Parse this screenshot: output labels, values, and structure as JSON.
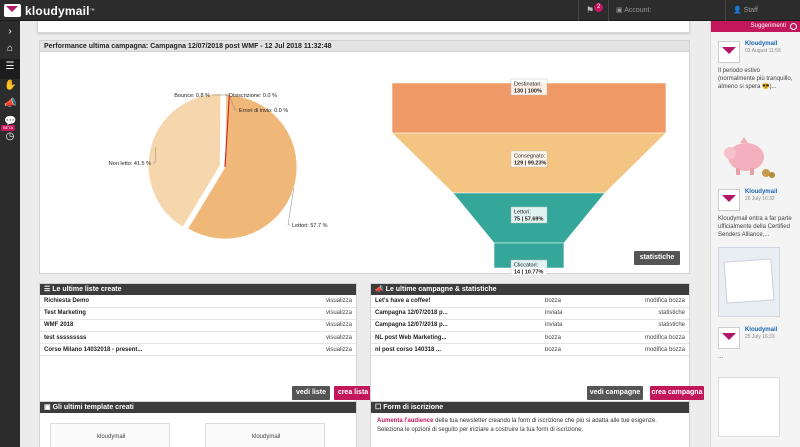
{
  "brand": {
    "name": "kloudymail",
    "tm": "™",
    "accent": "#c2185b"
  },
  "topbar": {
    "notif_count": "2",
    "account_label": "Account:",
    "user_label": "Staff"
  },
  "sidebar": {
    "icons": [
      "chevron-right-icon",
      "home-icon",
      "list-icon",
      "hand-icon",
      "megaphone-icon",
      "chat-icon",
      "clock-icon"
    ],
    "beta_label": "BETA"
  },
  "perf": {
    "title": "Performance ultima campagna: Campagna 12/07/2018 post WMF - 12 Jul 2018 11:32:48",
    "stats_button": "statistiche"
  },
  "chart_data": [
    {
      "type": "pie",
      "labels": [
        "Lettori",
        "Non letto",
        "Bounce",
        "Disiscrizione",
        "Errori di invio"
      ],
      "values": [
        57.7,
        41.5,
        0.8,
        0.0,
        0.0
      ],
      "display_labels": [
        "Lettori: 57.7 %",
        "Non letto: 41.5 %",
        "Bounce: 0.8 %",
        "Disiscrizione: 0.0 %",
        "Errori di invio: 0.0 %"
      ],
      "colors": [
        "#f0b878",
        "#f6d7ad",
        "#f3c88e",
        "#e8332c",
        "#cc2222"
      ]
    },
    {
      "type": "funnel",
      "stages": [
        {
          "name": "Destinatari:",
          "value": "130 | 100%",
          "count": 130,
          "percent": 100,
          "color": "#ef9a66"
        },
        {
          "name": "Consegnato:",
          "value": "129 | 99.23%",
          "count": 129,
          "percent": 99.23,
          "color": "#f4c482"
        },
        {
          "name": "Lettori:",
          "value": "75 | 57.69%",
          "count": 75,
          "percent": 57.69,
          "color": "#35a79a"
        },
        {
          "name": "Cliccatori:",
          "value": "14 | 10.77%",
          "count": 14,
          "percent": 10.77,
          "color": "#35a79a"
        }
      ]
    }
  ],
  "lists": {
    "title": "Le ultime liste create",
    "rows": [
      {
        "name": "Richiesta Demo",
        "action": "visualizza"
      },
      {
        "name": "Test Marketing",
        "action": "visualizza"
      },
      {
        "name": "WMF 2018",
        "action": "visualizza"
      },
      {
        "name": "test sssssssss",
        "action": "visualizza"
      },
      {
        "name": "Corso Milano 14032018 - present...",
        "action": "visualizza"
      }
    ],
    "btn_view": "vedi liste",
    "btn_create": "crea lista"
  },
  "camps": {
    "title": "Le ultime campagne & statistiche",
    "rows": [
      {
        "name": "Let's have a coffee!",
        "status": "bozza",
        "action": "modifica bozza"
      },
      {
        "name": "Campagna 12/07/2018 p...",
        "status": "inviata",
        "action": "statistiche"
      },
      {
        "name": "Campagna 12/07/2018 p...",
        "status": "inviata",
        "action": "statistiche"
      },
      {
        "name": "NL post Web Marketing...",
        "status": "bozza",
        "action": "modifica bozza"
      },
      {
        "name": "nl post corso 140318 ...",
        "status": "bozza",
        "action": "modifica bozza"
      }
    ],
    "btn_view": "vedi campagne",
    "btn_create": "crea campagna"
  },
  "templates": {
    "title": "Gli ultimi template creati",
    "thumb_logo": "kloudymail"
  },
  "forms": {
    "title": "Form di iscrizione",
    "highlight": "Aumenta l'audience",
    "text1": " della tua newsletter creando la form di iscrizione che più si adatta alle tue esigenze.",
    "text2": "Seleziona le opzioni di seguito per iniziare a costruire la tua form di iscrizione."
  },
  "suggestions": {
    "title": "Suggerimenti",
    "posts": [
      {
        "name": "Kloudymail",
        "date": "03 August 11:56",
        "text": "Il periodo estivo (normalmente più tranquillo, almeno si spera 😎)..."
      },
      {
        "name": "Kloudymail",
        "date": "26 July 16:32",
        "text": "Kloudymail entra a far parte ufficialmente della Certified Senders Alliance,..."
      },
      {
        "name": "Kloudymail",
        "date": "25 July 16:33",
        "text": "..."
      }
    ]
  }
}
